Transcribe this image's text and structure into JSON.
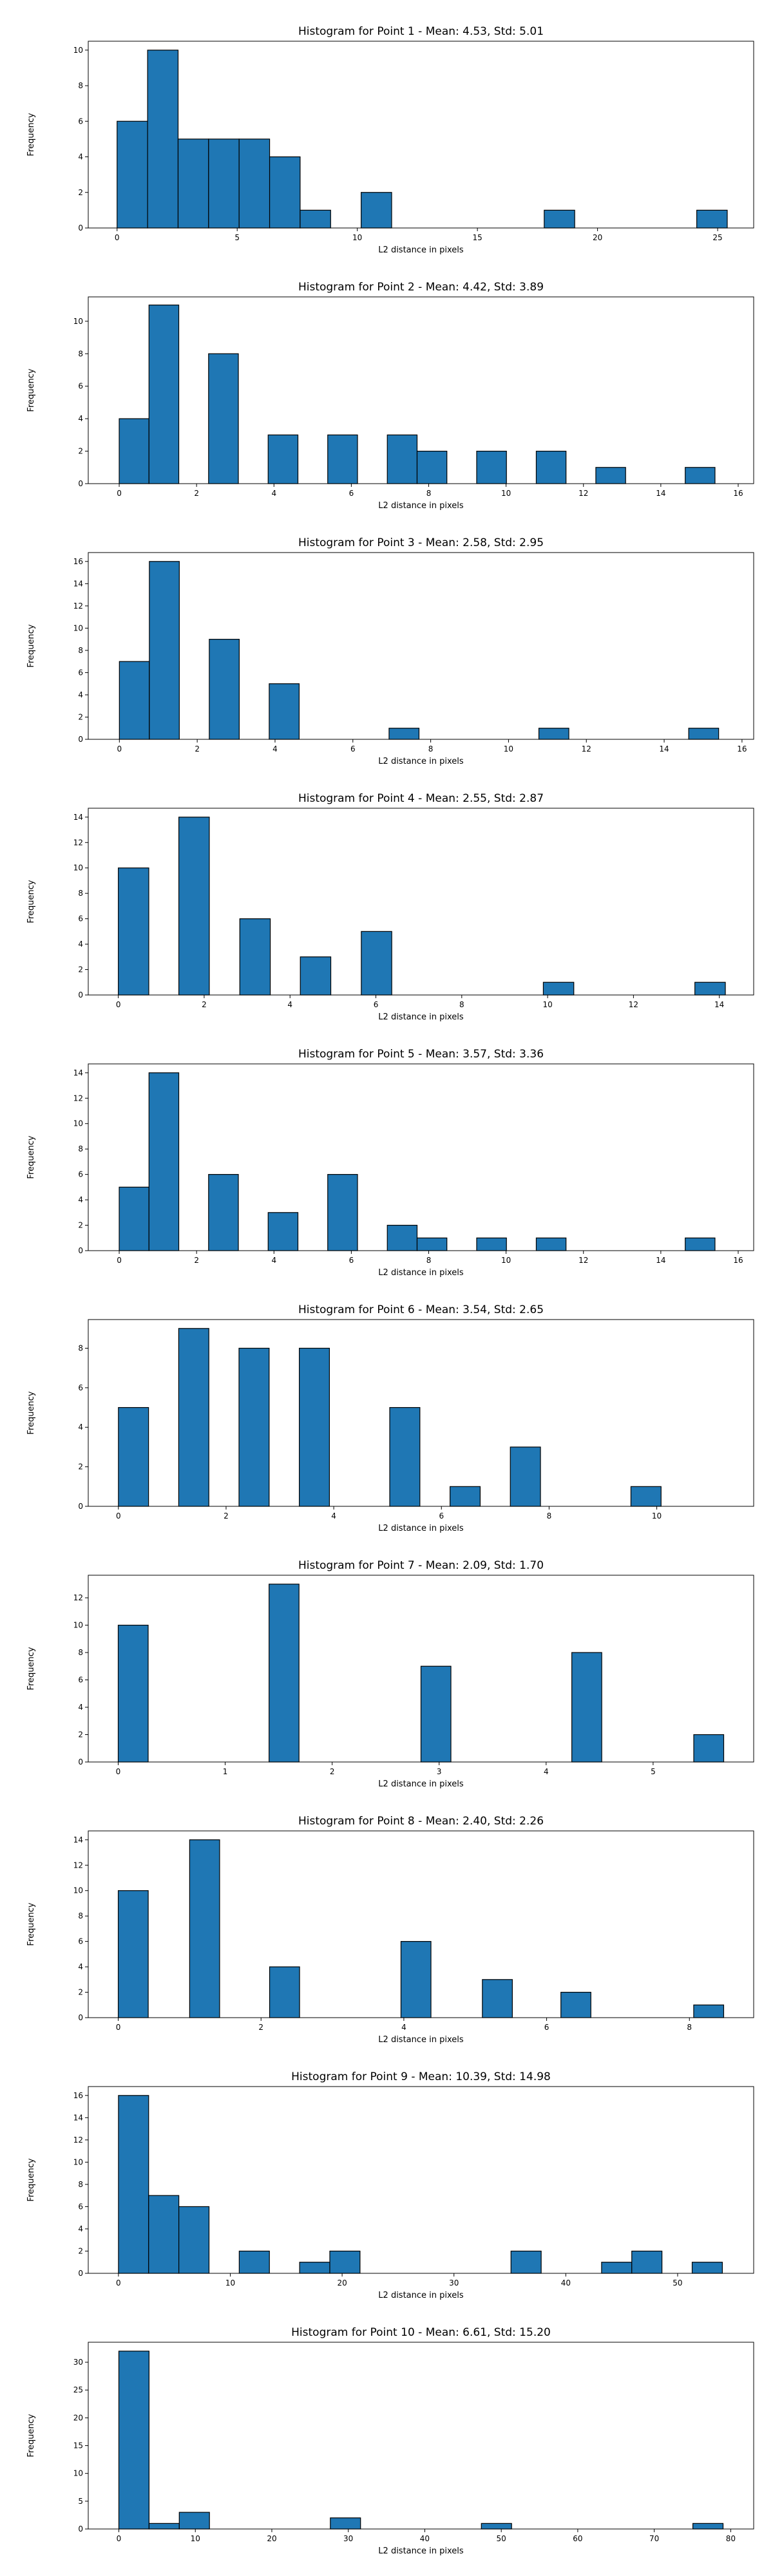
{
  "chart_data": [
    {
      "type": "bar",
      "title": "Histogram for Point 1 - Mean: 4.53, Std: 5.01",
      "xlabel": "L2 distance in pixels",
      "ylabel": "Frequency",
      "xlim": [
        -1.2,
        26.5
      ],
      "ylim": [
        0,
        10.5
      ],
      "xticks": [
        0,
        5,
        10,
        15,
        20,
        25
      ],
      "yticks": [
        0,
        2,
        4,
        6,
        8,
        10
      ],
      "bin_width": 1.27,
      "bins": [
        [
          0,
          6
        ],
        [
          1.27,
          10
        ],
        [
          2.54,
          5
        ],
        [
          3.81,
          5
        ],
        [
          5.08,
          5
        ],
        [
          6.35,
          4
        ],
        [
          7.62,
          1
        ],
        [
          10.16,
          2
        ],
        [
          17.78,
          1
        ],
        [
          24.13,
          1
        ]
      ],
      "grid": false,
      "color": "#1f77b4",
      "edgecolor": "#000000"
    },
    {
      "type": "bar",
      "title": "Histogram for Point 2 - Mean: 4.42, Std: 3.89",
      "xlabel": "L2 distance in pixels",
      "ylabel": "Frequency",
      "xlim": [
        -0.8,
        16.4
      ],
      "ylim": [
        0,
        11.5
      ],
      "xticks": [
        0,
        2,
        4,
        6,
        8,
        10,
        12,
        14,
        16
      ],
      "yticks": [
        0,
        2,
        4,
        6,
        8,
        10
      ],
      "bin_width": 0.77,
      "bins": [
        [
          0,
          4
        ],
        [
          0.77,
          11
        ],
        [
          2.31,
          8
        ],
        [
          3.85,
          3
        ],
        [
          5.39,
          3
        ],
        [
          6.93,
          3
        ],
        [
          7.7,
          2
        ],
        [
          9.24,
          2
        ],
        [
          10.78,
          2
        ],
        [
          12.32,
          1
        ],
        [
          14.63,
          1
        ]
      ],
      "grid": false,
      "color": "#1f77b4",
      "edgecolor": "#000000"
    },
    {
      "type": "bar",
      "title": "Histogram for Point 3 - Mean: 2.58, Std: 2.95",
      "xlabel": "L2 distance in pixels",
      "ylabel": "Frequency",
      "xlim": [
        -0.8,
        16.3
      ],
      "ylim": [
        0,
        16.8
      ],
      "xticks": [
        0,
        2,
        4,
        6,
        8,
        10,
        12,
        14,
        16
      ],
      "yticks": [
        0,
        2,
        4,
        6,
        8,
        10,
        12,
        14,
        16
      ],
      "bin_width": 0.77,
      "bins": [
        [
          0,
          7
        ],
        [
          0.77,
          16
        ],
        [
          2.31,
          9
        ],
        [
          3.85,
          5
        ],
        [
          6.93,
          1
        ],
        [
          10.78,
          1
        ],
        [
          14.63,
          1
        ]
      ],
      "grid": false,
      "color": "#1f77b4",
      "edgecolor": "#000000"
    },
    {
      "type": "bar",
      "title": "Histogram for Point 4 - Mean: 2.55, Std: 2.87",
      "xlabel": "L2 distance in pixels",
      "ylabel": "Frequency",
      "xlim": [
        -0.7,
        14.8
      ],
      "ylim": [
        0,
        14.7
      ],
      "xticks": [
        0,
        2,
        4,
        6,
        8,
        10,
        12,
        14
      ],
      "yticks": [
        0,
        2,
        4,
        6,
        8,
        10,
        12,
        14
      ],
      "bin_width": 0.71,
      "bins": [
        [
          0,
          10
        ],
        [
          1.41,
          14
        ],
        [
          2.83,
          6
        ],
        [
          4.24,
          3
        ],
        [
          5.66,
          5
        ],
        [
          9.9,
          1
        ],
        [
          13.43,
          1
        ]
      ],
      "grid": false,
      "color": "#1f77b4",
      "edgecolor": "#000000"
    },
    {
      "type": "bar",
      "title": "Histogram for Point 5 - Mean: 3.57, Std: 3.36",
      "xlabel": "L2 distance in pixels",
      "ylabel": "Frequency",
      "xlim": [
        -0.8,
        16.4
      ],
      "ylim": [
        0,
        14.7
      ],
      "xticks": [
        0,
        2,
        4,
        6,
        8,
        10,
        12,
        14,
        16
      ],
      "yticks": [
        0,
        2,
        4,
        6,
        8,
        10,
        12,
        14
      ],
      "bin_width": 0.77,
      "bins": [
        [
          0,
          5
        ],
        [
          0.77,
          14
        ],
        [
          2.31,
          6
        ],
        [
          3.85,
          3
        ],
        [
          5.39,
          6
        ],
        [
          6.93,
          2
        ],
        [
          7.7,
          1
        ],
        [
          9.24,
          1
        ],
        [
          10.78,
          1
        ],
        [
          14.63,
          1
        ]
      ],
      "grid": false,
      "color": "#1f77b4",
      "edgecolor": "#000000"
    },
    {
      "type": "bar",
      "title": "Histogram for Point 6 - Mean: 3.54, Std: 2.65",
      "xlabel": "L2 distance in pixels",
      "ylabel": "Frequency",
      "xlim": [
        -0.56,
        11.8
      ],
      "ylim": [
        0,
        9.45
      ],
      "xticks": [
        0,
        2,
        4,
        6,
        8,
        10
      ],
      "yticks": [
        0,
        2,
        4,
        6,
        8
      ],
      "bin_width": 0.56,
      "bins": [
        [
          0,
          5
        ],
        [
          1.12,
          9
        ],
        [
          2.24,
          8
        ],
        [
          3.36,
          8
        ],
        [
          5.04,
          5
        ],
        [
          6.16,
          1
        ],
        [
          7.28,
          3
        ],
        [
          9.52,
          1
        ]
      ],
      "grid": false,
      "color": "#1f77b4",
      "edgecolor": "#000000"
    },
    {
      "type": "bar",
      "title": "Histogram for Point 7 - Mean: 2.09, Std: 1.70",
      "xlabel": "L2 distance in pixels",
      "ylabel": "Frequency",
      "xlim": [
        -0.28,
        5.94
      ],
      "ylim": [
        0,
        13.65
      ],
      "xticks": [
        0,
        1,
        2,
        3,
        4,
        5
      ],
      "yticks": [
        0,
        2,
        4,
        6,
        8,
        10,
        12
      ],
      "bin_width": 0.28,
      "bins": [
        [
          0,
          10
        ],
        [
          1.41,
          13
        ],
        [
          2.83,
          7
        ],
        [
          4.24,
          8
        ],
        [
          5.38,
          2
        ]
      ],
      "grid": false,
      "color": "#1f77b4",
      "edgecolor": "#000000"
    },
    {
      "type": "bar",
      "title": "Histogram for Point 8 - Mean: 2.40, Std: 2.26",
      "xlabel": "L2 distance in pixels",
      "ylabel": "Frequency",
      "xlim": [
        -0.42,
        8.9
      ],
      "ylim": [
        0,
        14.7
      ],
      "xticks": [
        0,
        2,
        4,
        6,
        8
      ],
      "yticks": [
        0,
        2,
        4,
        6,
        8,
        10,
        12,
        14
      ],
      "bin_width": 0.42,
      "bins": [
        [
          0,
          10
        ],
        [
          1.0,
          14
        ],
        [
          2.12,
          4
        ],
        [
          3.96,
          6
        ],
        [
          5.1,
          3
        ],
        [
          6.2,
          2
        ],
        [
          8.06,
          1
        ]
      ],
      "grid": false,
      "color": "#1f77b4",
      "edgecolor": "#000000"
    },
    {
      "type": "bar",
      "title": "Histogram for Point 9 - Mean: 10.39, Std: 14.98",
      "xlabel": "L2 distance in pixels",
      "ylabel": "Frequency",
      "xlim": [
        -2.7,
        56.8
      ],
      "ylim": [
        0,
        16.8
      ],
      "xticks": [
        0,
        10,
        20,
        30,
        40,
        50
      ],
      "yticks": [
        0,
        2,
        4,
        6,
        8,
        10,
        12,
        14,
        16
      ],
      "bin_width": 2.7,
      "bins": [
        [
          0,
          16
        ],
        [
          2.7,
          7
        ],
        [
          5.4,
          6
        ],
        [
          10.8,
          2
        ],
        [
          16.2,
          1
        ],
        [
          18.9,
          2
        ],
        [
          35.1,
          2
        ],
        [
          43.2,
          1
        ],
        [
          45.9,
          2
        ],
        [
          51.3,
          1
        ]
      ],
      "grid": false,
      "color": "#1f77b4",
      "edgecolor": "#000000"
    },
    {
      "type": "bar",
      "title": "Histogram for Point 10 - Mean: 6.61, Std: 15.20",
      "xlabel": "L2 distance in pixels",
      "ylabel": "Frequency",
      "xlim": [
        -4.0,
        83.0
      ],
      "ylim": [
        0,
        33.6
      ],
      "xticks": [
        0,
        10,
        20,
        30,
        40,
        50,
        60,
        70,
        80
      ],
      "yticks": [
        0,
        5,
        10,
        15,
        20,
        25,
        30
      ],
      "bin_width": 3.95,
      "bins": [
        [
          0,
          32
        ],
        [
          3.95,
          1
        ],
        [
          7.9,
          3
        ],
        [
          27.65,
          2
        ],
        [
          47.4,
          1
        ],
        [
          75.05,
          1
        ]
      ],
      "grid": false,
      "color": "#1f77b4",
      "edgecolor": "#000000"
    }
  ]
}
